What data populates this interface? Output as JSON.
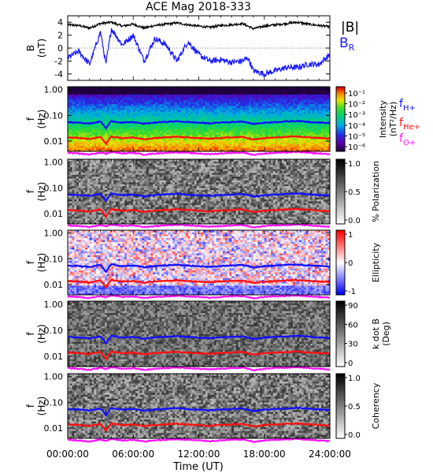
{
  "title": "ACE Mag 2018-333",
  "xlabel": "Time (UT)",
  "x_ticks": [
    "00:00:00",
    "06:00:00",
    "12:00:00",
    "18:00:00",
    "24:00:00"
  ],
  "colors": {
    "b_total": "#000000",
    "b_r": "#1a1aff",
    "f_h": "#1010ff",
    "f_he": "#ff1010",
    "f_o": "#ff10ff"
  },
  "chart_data": [
    {
      "type": "line",
      "panel": "magnetic-field",
      "ylabel": "B",
      "yunit": "(nT)",
      "ylim": [
        -5,
        5
      ],
      "y_ticks": [
        "4",
        "2",
        "0",
        "-2",
        "-4"
      ],
      "legend": [
        "|B|",
        "B_R"
      ],
      "x_hours": [
        0,
        1,
        2,
        3,
        3.5,
        4,
        5,
        6,
        7,
        8,
        9,
        10,
        11,
        12,
        13,
        14,
        15,
        16,
        16.5,
        17,
        18,
        19,
        20,
        21,
        22,
        23,
        24
      ],
      "series": [
        {
          "name": "|B|",
          "values": [
            3.6,
            3.5,
            3.1,
            3.8,
            3.9,
            4.0,
            3.4,
            3.7,
            3.1,
            3.5,
            3.7,
            3.9,
            3.6,
            3.4,
            3.2,
            3.5,
            3.6,
            3.8,
            3.4,
            3.0,
            3.4,
            3.6,
            3.8,
            4.0,
            3.7,
            3.5,
            3.3
          ]
        },
        {
          "name": "B_R",
          "values": [
            -1.5,
            -0.5,
            -2.5,
            2.5,
            -2.5,
            3.0,
            0.5,
            2.0,
            -2.0,
            1.5,
            0.5,
            -2.0,
            1.0,
            -1.0,
            -2.0,
            -1.8,
            -2.2,
            -2.0,
            -1.5,
            -3.5,
            -4.0,
            -3.5,
            -3.0,
            -3.0,
            -2.5,
            -2.5,
            -1.0
          ]
        }
      ]
    },
    {
      "type": "heatmap",
      "panel": "intensity",
      "ylabel": "f",
      "yunit": "(Hz)",
      "scale": "log",
      "ylim": [
        0.004,
        1.3
      ],
      "y_ticks": [
        "1.00",
        "0.10",
        "0.01"
      ],
      "colorbar": {
        "label": "Intensity",
        "unit": "(nT²/Hz)",
        "ticks": [
          "10⁻¹",
          "10⁻²",
          "10⁻³",
          "10⁻⁴",
          "10⁻⁵",
          "10⁻⁶"
        ],
        "range": [
          1e-06,
          0.2
        ],
        "colors": "rainbow"
      },
      "legend": [
        "f_H+",
        "f_He+",
        "f_O+"
      ]
    },
    {
      "type": "heatmap",
      "panel": "polarization",
      "ylabel": "f",
      "yunit": "(Hz)",
      "scale": "log",
      "y_ticks": [
        "1.00",
        "0.10",
        "0.01"
      ],
      "colorbar": {
        "label": "% Polarization",
        "ticks": [
          "1.0",
          "0.5",
          "0.0"
        ],
        "range": [
          0,
          1
        ],
        "colors": "gray"
      }
    },
    {
      "type": "heatmap",
      "panel": "ellipticity",
      "ylabel": "f",
      "yunit": "(Hz)",
      "scale": "log",
      "y_ticks": [
        "1.00",
        "0.10",
        "0.01"
      ],
      "colorbar": {
        "label": "Ellipticity",
        "ticks": [
          "1",
          "0",
          "-1"
        ],
        "range": [
          -1,
          1
        ],
        "colors": "blue-white-red"
      }
    },
    {
      "type": "heatmap",
      "panel": "k-dot-b",
      "ylabel": "f",
      "yunit": "(Hz)",
      "scale": "log",
      "y_ticks": [
        "1.00",
        "0.10",
        "0.01"
      ],
      "colorbar": {
        "label": "k dot B",
        "unit": "(Deg)",
        "ticks": [
          "90",
          "60",
          "30",
          "0"
        ],
        "range": [
          0,
          90
        ],
        "colors": "gray"
      }
    },
    {
      "type": "heatmap",
      "panel": "coherency",
      "ylabel": "f",
      "yunit": "(Hz)",
      "scale": "log",
      "y_ticks": [
        "1.00",
        "0.10",
        "0.01"
      ],
      "colorbar": {
        "label": "Coherency",
        "ticks": [
          "1.0",
          "0.5",
          "0.0"
        ],
        "range": [
          0,
          1
        ],
        "colors": "gray"
      }
    }
  ],
  "gyro_freqs": {
    "x_hours": [
      0,
      1,
      2,
      3,
      3.5,
      4,
      5,
      6,
      7,
      8,
      9,
      10,
      11,
      12,
      13,
      14,
      15,
      16,
      16.5,
      17,
      18,
      19,
      20,
      21,
      22,
      23,
      24
    ],
    "f_H": [
      0.055,
      0.053,
      0.048,
      0.058,
      0.03,
      0.06,
      0.052,
      0.055,
      0.047,
      0.053,
      0.056,
      0.059,
      0.055,
      0.052,
      0.049,
      0.053,
      0.055,
      0.058,
      0.052,
      0.046,
      0.052,
      0.055,
      0.058,
      0.061,
      0.056,
      0.053,
      0.05
    ],
    "f_He": [
      0.0138,
      0.0133,
      0.012,
      0.0145,
      0.0075,
      0.015,
      0.013,
      0.0138,
      0.0118,
      0.0133,
      0.014,
      0.0148,
      0.0138,
      0.013,
      0.0123,
      0.0133,
      0.0138,
      0.0145,
      0.013,
      0.0115,
      0.013,
      0.0138,
      0.0145,
      0.0152,
      0.014,
      0.0133,
      0.0125
    ],
    "f_O": [
      0.0035,
      0.0033,
      0.003,
      0.0036,
      0.0032,
      0.0038,
      0.0033,
      0.0035,
      0.003,
      0.0033,
      0.0035,
      0.0037,
      0.0035,
      0.0033,
      0.0031,
      0.0033,
      0.0035,
      0.0036,
      0.0033,
      0.0029,
      0.0033,
      0.0035,
      0.0036,
      0.0038,
      0.0035,
      0.0033,
      0.0031
    ]
  }
}
